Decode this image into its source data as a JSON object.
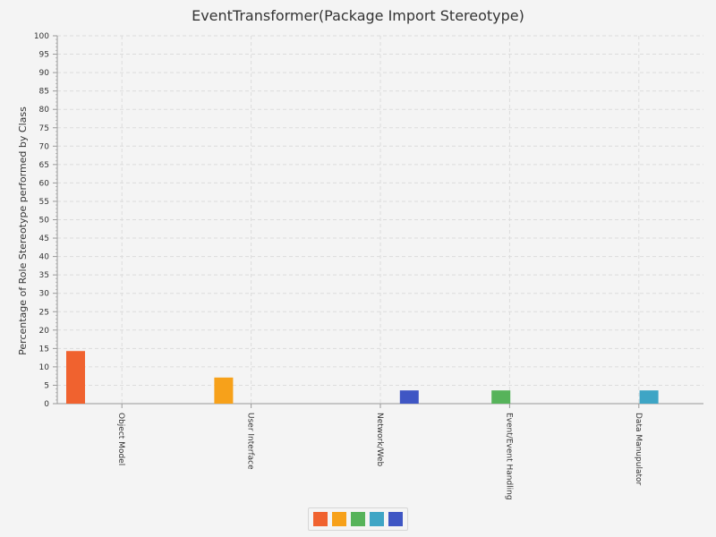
{
  "chart_data": {
    "type": "bar",
    "title": "EventTransformer(Package Import Stereotype)",
    "ylabel": "Percentage of Role Stereotype performed by Class",
    "xlabel": "",
    "ylim": [
      0,
      100
    ],
    "ytick_step": 5,
    "grid": true,
    "legend_position": "bottom-center",
    "categories": [
      "Object Model",
      "User Interface",
      "Network/Web",
      "Event/Event Handling",
      "Data Manupulator"
    ],
    "series": [
      {
        "color": "#f0622f",
        "values": [
          14.3,
          0,
          0,
          0,
          0
        ]
      },
      {
        "color": "#f7a11a",
        "values": [
          0,
          7.1,
          0,
          0,
          0
        ]
      },
      {
        "color": "#56b35a",
        "values": [
          0,
          0,
          0,
          3.6,
          0
        ]
      },
      {
        "color": "#3ea5c5",
        "values": [
          0,
          0,
          0,
          0,
          3.6
        ]
      },
      {
        "color": "#3f56c4",
        "values": [
          0,
          0,
          3.6,
          0,
          0
        ]
      }
    ]
  }
}
